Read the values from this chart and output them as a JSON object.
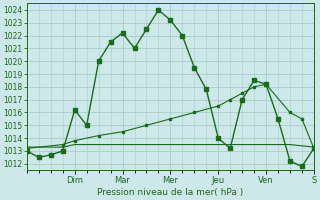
{
  "background_color": "#cce8e8",
  "grid_color": "#aacccc",
  "line_color": "#1a6b1a",
  "marker_color": "#1a6b1a",
  "title": "Pression niveau de la mer( hPa )",
  "ylim": [
    1011.5,
    1024.5
  ],
  "yticks": [
    1012,
    1013,
    1014,
    1015,
    1016,
    1017,
    1018,
    1019,
    1020,
    1021,
    1022,
    1023,
    1024
  ],
  "xlim": [
    0.0,
    6.0
  ],
  "day_labels": [
    "Dim",
    "Mar",
    "Mer",
    "Jeu",
    "Ven",
    "S"
  ],
  "day_positions": [
    1.0,
    2.0,
    3.0,
    4.0,
    5.0,
    6.0
  ],
  "series1_x": [
    0.0,
    0.25,
    0.5,
    0.75,
    1.0,
    1.25,
    1.5,
    1.75,
    2.0,
    2.25,
    2.5,
    2.75,
    3.0,
    3.25,
    3.5,
    3.75,
    4.0,
    4.25,
    4.5,
    4.75,
    5.0,
    5.25,
    5.5,
    5.75,
    6.0
  ],
  "series1_y": [
    1013.0,
    1012.5,
    1012.7,
    1013.0,
    1016.2,
    1015.0,
    1020.0,
    1021.5,
    1022.2,
    1021.0,
    1022.5,
    1024.0,
    1023.2,
    1022.0,
    1019.5,
    1017.8,
    1014.0,
    1013.2,
    1017.0,
    1018.5,
    1018.2,
    1015.5,
    1012.2,
    1011.8,
    1013.2
  ],
  "series2_x": [
    0.0,
    0.75,
    1.0,
    1.5,
    2.0,
    2.5,
    3.0,
    3.5,
    4.0,
    4.25,
    4.5,
    4.75,
    5.0,
    5.5,
    5.75,
    6.0
  ],
  "series2_y": [
    1013.2,
    1013.5,
    1013.8,
    1014.2,
    1014.5,
    1015.0,
    1015.5,
    1016.0,
    1016.5,
    1017.0,
    1017.5,
    1018.0,
    1018.2,
    1016.0,
    1015.5,
    1013.2
  ],
  "series3_x": [
    0.0,
    0.75,
    1.0,
    1.5,
    2.0,
    2.5,
    3.0,
    3.5,
    4.0,
    4.5,
    5.0,
    5.5,
    6.0
  ],
  "series3_y": [
    1013.3,
    1013.3,
    1013.5,
    1013.5,
    1013.5,
    1013.5,
    1013.5,
    1013.5,
    1013.5,
    1013.5,
    1013.5,
    1013.5,
    1013.3
  ]
}
